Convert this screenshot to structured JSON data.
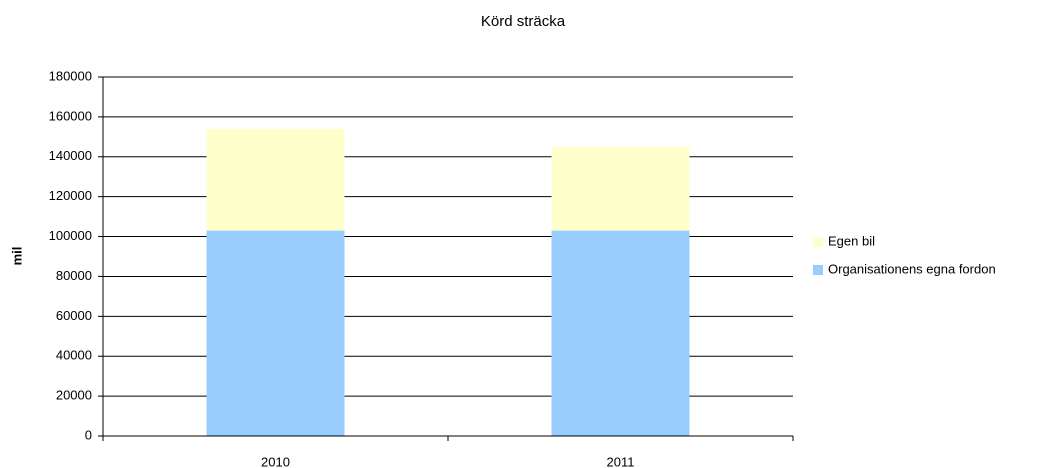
{
  "chart_data": {
    "type": "stacked_bar",
    "title": "Körd sträcka",
    "y_label": "mil",
    "categories": [
      "2010",
      "2011"
    ],
    "series": [
      {
        "name": "Organisationens egna fordon",
        "color": "#99ccff",
        "values": [
          103000,
          103000
        ]
      },
      {
        "name": "Egen bil",
        "color": "#ffffcc",
        "values": [
          51000,
          42000
        ]
      }
    ],
    "ylim": [
      0,
      180000
    ],
    "yticks": [
      0,
      20000,
      40000,
      60000,
      80000,
      100000,
      120000,
      140000,
      160000,
      180000
    ],
    "grid": true,
    "legend": "right"
  }
}
